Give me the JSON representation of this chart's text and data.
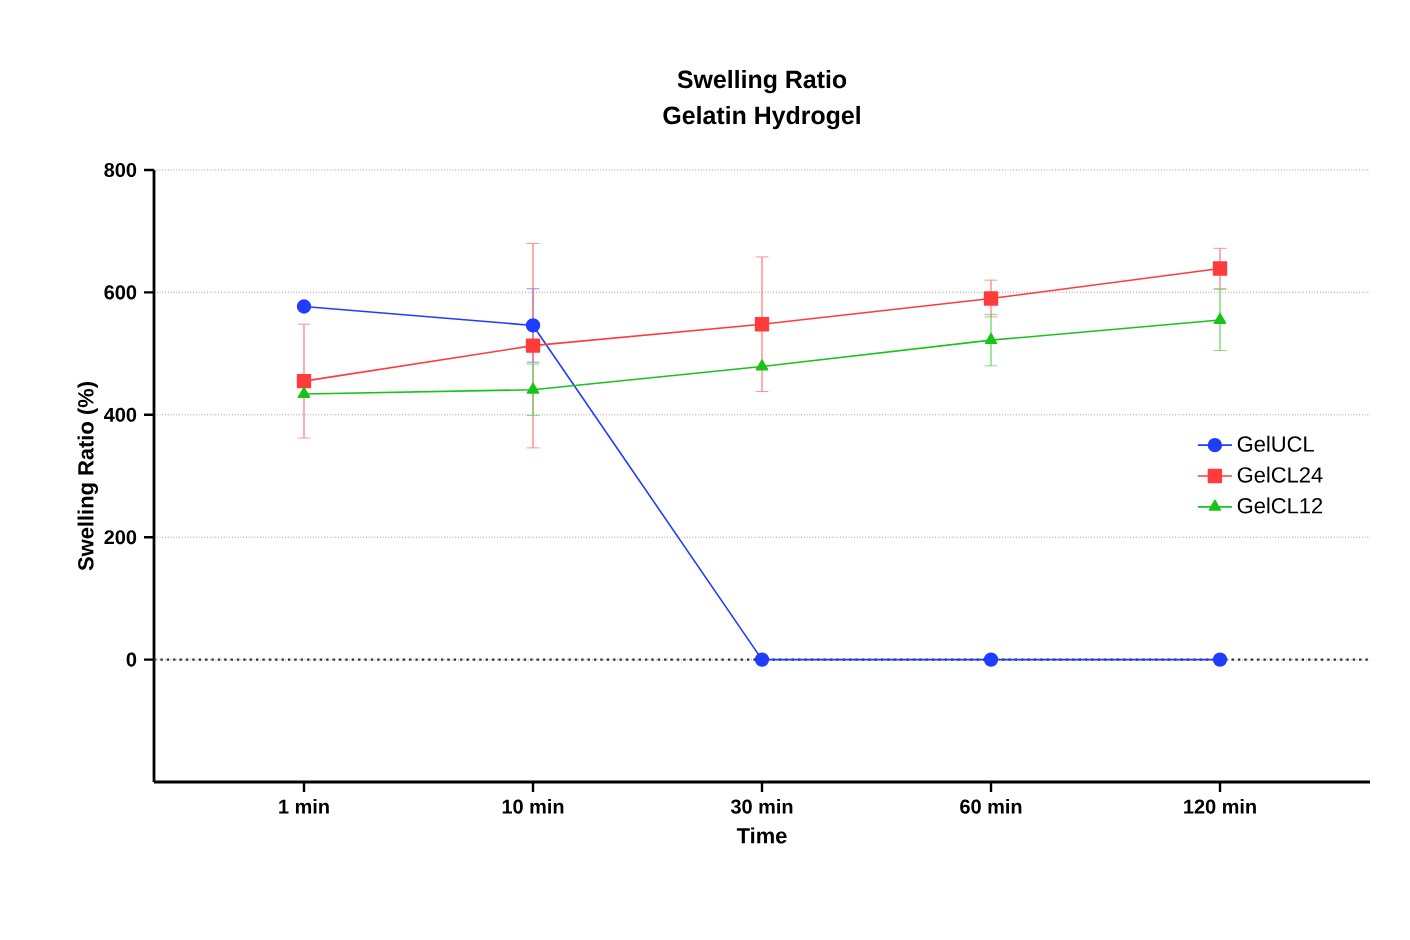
{
  "chart_data": {
    "type": "line",
    "title": "Swelling Ratio",
    "subtitle": "Gelatin Hydrogel",
    "xlabel": "Time",
    "ylabel": "Swelling Ratio (%)",
    "categories": [
      "1 min",
      "10 min",
      "30 min",
      "60 min",
      "120 min"
    ],
    "ylim": [
      -200,
      800
    ],
    "yticks": [
      0,
      200,
      400,
      600,
      800
    ],
    "grid": "y",
    "legend": "right",
    "ref_lines": [
      {
        "axis": "y",
        "value": 0,
        "line_style": "dotted",
        "color": "#333333"
      }
    ],
    "series": [
      {
        "name": "GelUCL",
        "color": "#1f3cff",
        "marker": "circle",
        "values": [
          577,
          546,
          0,
          0,
          0
        ],
        "errors": [
          null,
          60,
          null,
          null,
          null
        ]
      },
      {
        "name": "GelCL24",
        "color": "#ff3b3b",
        "marker": "square",
        "values": [
          455,
          513,
          548,
          590,
          639
        ],
        "errors": [
          93,
          167,
          110,
          30,
          33
        ]
      },
      {
        "name": "GelCL12",
        "color": "#19c419",
        "marker": "triangle",
        "values": [
          434,
          441,
          479,
          522,
          555
        ],
        "errors": [
          null,
          42,
          null,
          42,
          50
        ]
      }
    ]
  }
}
